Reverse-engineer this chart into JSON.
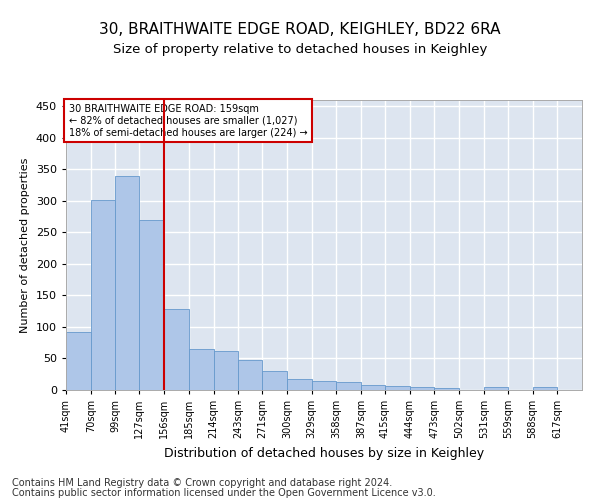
{
  "title1": "30, BRAITHWAITE EDGE ROAD, KEIGHLEY, BD22 6RA",
  "title2": "Size of property relative to detached houses in Keighley",
  "xlabel": "Distribution of detached houses by size in Keighley",
  "ylabel": "Number of detached properties",
  "footer1": "Contains HM Land Registry data © Crown copyright and database right 2024.",
  "footer2": "Contains public sector information licensed under the Open Government Licence v3.0.",
  "annotation_line1": "30 BRAITHWAITE EDGE ROAD: 159sqm",
  "annotation_line2": "← 82% of detached houses are smaller (1,027)",
  "annotation_line3": "18% of semi-detached houses are larger (224) →",
  "bar_left_edges": [
    41,
    70,
    99,
    127,
    156,
    185,
    214,
    243,
    271,
    300,
    329,
    358,
    387,
    415,
    444,
    473,
    502,
    531,
    559,
    588
  ],
  "bar_heights": [
    92,
    302,
    340,
    270,
    128,
    65,
    62,
    48,
    30,
    18,
    15,
    12,
    8,
    6,
    4,
    3,
    0,
    4,
    0,
    4
  ],
  "bar_widths": [
    29,
    29,
    28,
    29,
    29,
    29,
    29,
    28,
    29,
    29,
    29,
    29,
    28,
    29,
    29,
    29,
    29,
    28,
    29,
    29
  ],
  "bar_color": "#aec6e8",
  "bar_edgecolor": "#6699cc",
  "redline_x": 156,
  "xlim": [
    41,
    646
  ],
  "ylim": [
    0,
    460
  ],
  "yticks": [
    0,
    50,
    100,
    150,
    200,
    250,
    300,
    350,
    400,
    450
  ],
  "xtick_positions": [
    41,
    70,
    99,
    127,
    156,
    185,
    214,
    243,
    271,
    300,
    329,
    358,
    387,
    415,
    444,
    473,
    502,
    531,
    559,
    588,
    617
  ],
  "xtick_labels": [
    "41sqm",
    "70sqm",
    "99sqm",
    "127sqm",
    "156sqm",
    "185sqm",
    "214sqm",
    "243sqm",
    "271sqm",
    "300sqm",
    "329sqm",
    "358sqm",
    "387sqm",
    "415sqm",
    "444sqm",
    "473sqm",
    "502sqm",
    "531sqm",
    "559sqm",
    "588sqm",
    "617sqm"
  ],
  "bg_color": "#dde5f0",
  "grid_color": "#ffffff",
  "annotation_box_facecolor": "#ffffff",
  "annotation_box_edgecolor": "#cc0000",
  "title1_fontsize": 11,
  "title2_fontsize": 9.5,
  "xlabel_fontsize": 9,
  "ylabel_fontsize": 8,
  "tick_fontsize": 7,
  "footer_fontsize": 7
}
